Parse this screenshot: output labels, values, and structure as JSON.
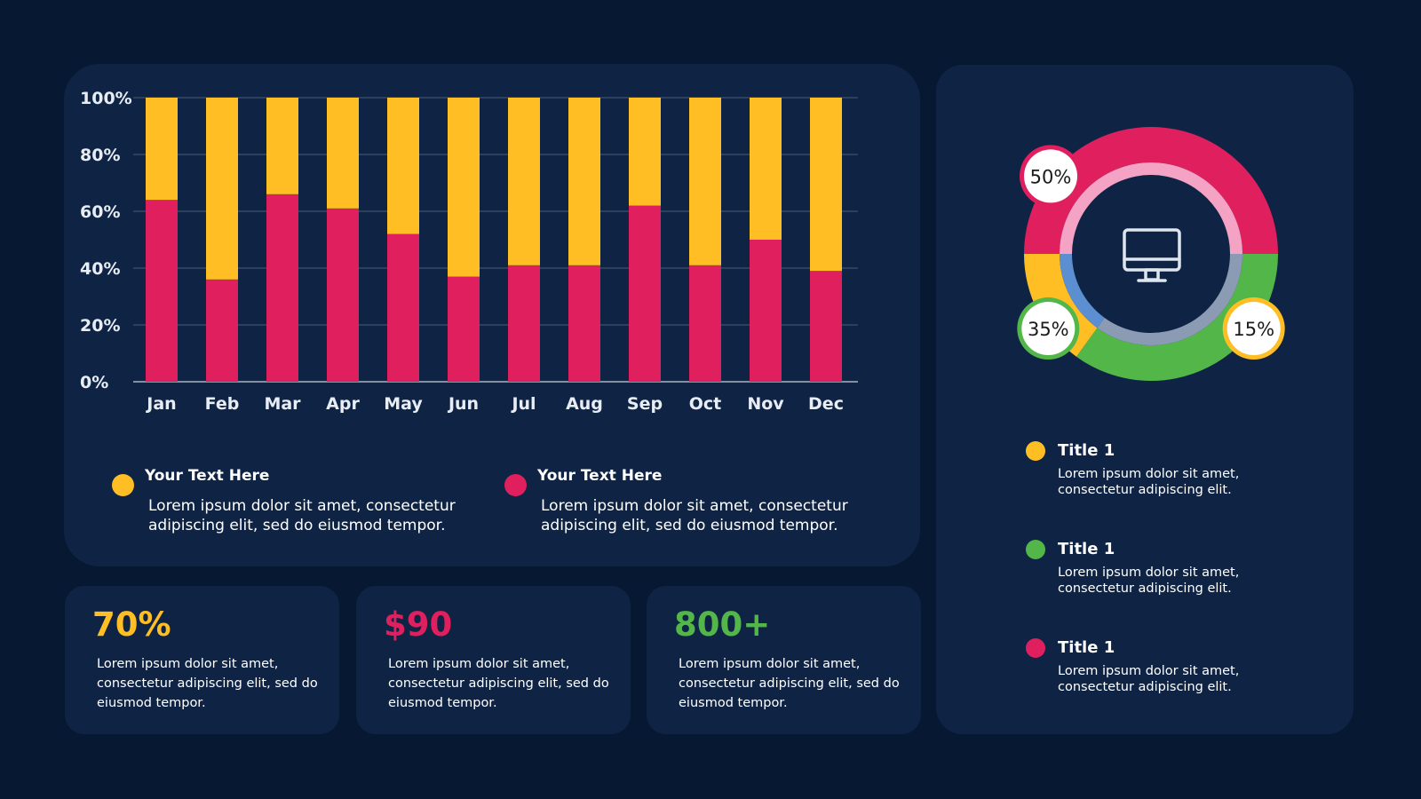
{
  "chart_data": [
    {
      "type": "bar",
      "stacked": true,
      "categories": [
        "Jan",
        "Feb",
        "Mar",
        "Apr",
        "May",
        "Jun",
        "Jul",
        "Aug",
        "Sep",
        "Oct",
        "Nov",
        "Dec"
      ],
      "series": [
        {
          "color": "#e01f5f",
          "values": [
            64,
            36,
            66,
            61,
            52,
            37,
            41,
            41,
            62,
            41,
            50,
            39
          ]
        },
        {
          "color": "#ffbf24",
          "values": [
            36,
            64,
            34,
            39,
            48,
            63,
            59,
            59,
            38,
            59,
            50,
            61
          ]
        }
      ],
      "yticks": [
        "0%",
        "20%",
        "40%",
        "60%",
        "80%",
        "100%"
      ],
      "ylim": [
        0,
        100
      ],
      "grid": true
    },
    {
      "type": "pie",
      "donut": true,
      "slices": [
        {
          "label": "50%",
          "value": 50,
          "color": "#e01f5f",
          "inner_color": "#f5a3c4"
        },
        {
          "label": "35%",
          "value": 35,
          "color": "#52b748",
          "inner_color": "#8c9bb4"
        },
        {
          "label": "15%",
          "value": 15,
          "color": "#ffbf24",
          "inner_color": "#5b8fd1"
        }
      ],
      "center_icon": "monitor-icon"
    }
  ],
  "legend": [
    {
      "title": "Your Text Here",
      "text": "Lorem ipsum dolor sit amet, consectetur adipiscing elit, sed do eiusmod tempor.",
      "color": "#ffbf24"
    },
    {
      "title": "Your Text Here",
      "text": "Lorem ipsum dolor sit amet, consectetur adipiscing elit, sed do eiusmod tempor.",
      "color": "#e01f5f"
    }
  ],
  "stats": [
    {
      "value": "70%",
      "color": "#ffbf24",
      "text": "Lorem ipsum dolor sit amet, consectetur adipiscing elit, sed do eiusmod tempor."
    },
    {
      "value": "$90",
      "color": "#e01f5f",
      "text": "Lorem ipsum dolor sit amet, consectetur adipiscing elit, sed do eiusmod tempor."
    },
    {
      "value": "800+",
      "color": "#52b748",
      "text": "Lorem ipsum dolor sit amet, consectetur adipiscing elit, sed do eiusmod tempor."
    }
  ],
  "categories": [
    {
      "title": "Title 1",
      "text": "Lorem ipsum dolor sit amet, consectetur adipiscing elit.",
      "color": "#ffbf24"
    },
    {
      "title": "Title 1",
      "text": "Lorem ipsum dolor sit amet, consectetur adipiscing elit.",
      "color": "#52b748"
    },
    {
      "title": "Title 1",
      "text": "Lorem ipsum dolor sit amet, consectetur adipiscing elit.",
      "color": "#e01f5f"
    }
  ],
  "colors": {
    "background": "#071833",
    "panel": "#0f2444",
    "grid": "#4a5a74",
    "axis": "#aab4c4"
  }
}
